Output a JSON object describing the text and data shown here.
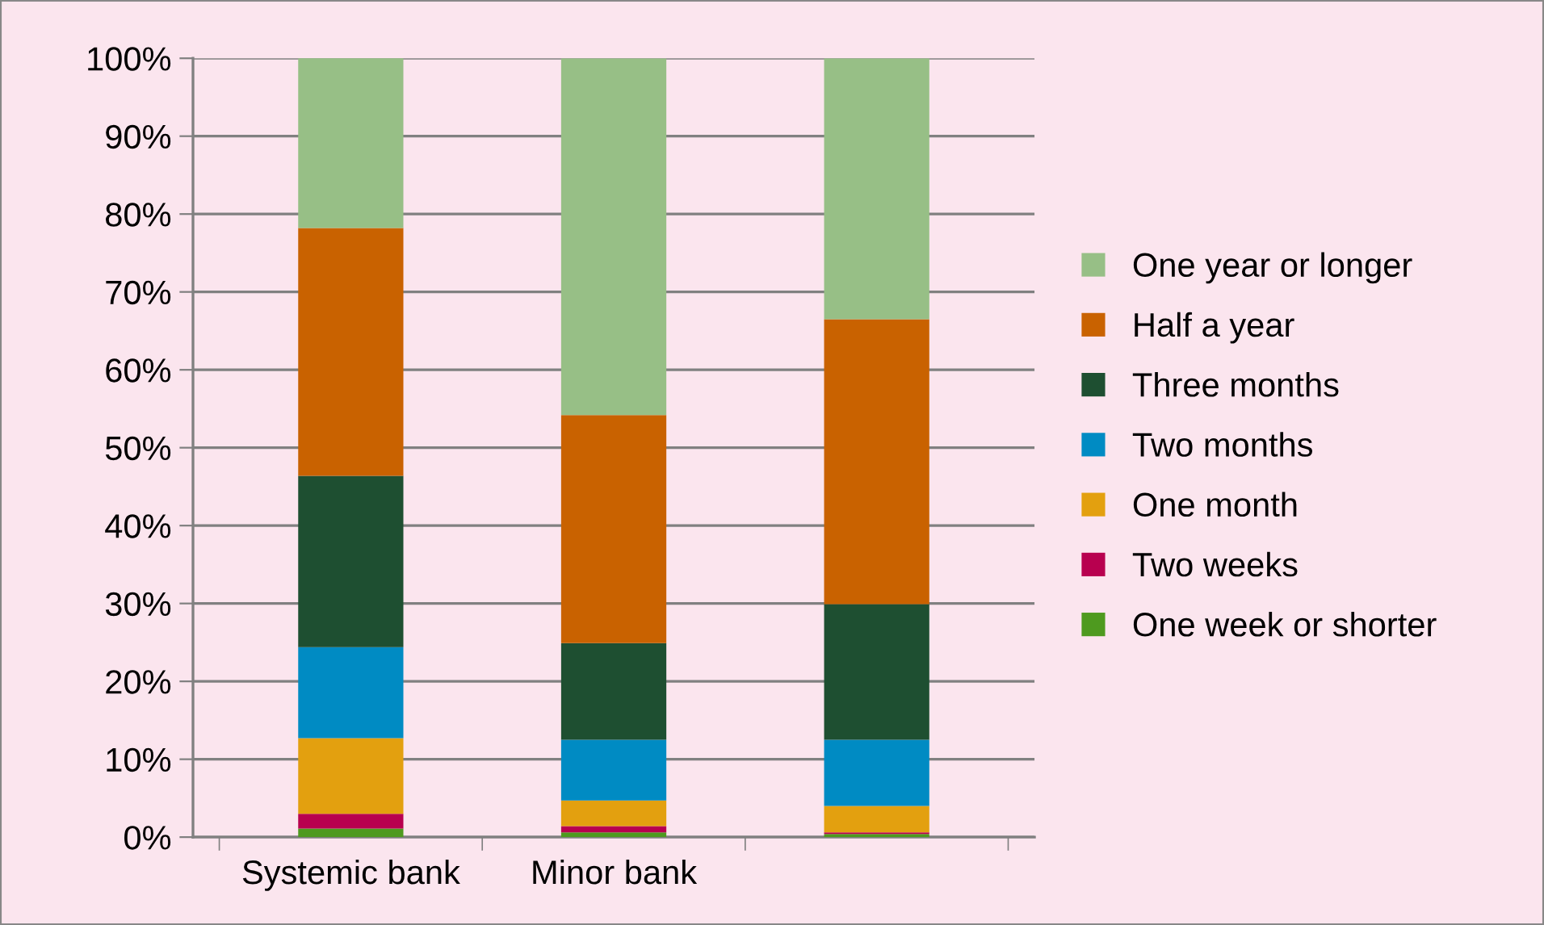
{
  "chart_data": {
    "type": "bar",
    "stacked": true,
    "categories": [
      "Systemic bank",
      "Minor bank",
      null
    ],
    "series": [
      {
        "name": "One week or shorter",
        "color": "#4e9a1f",
        "values": [
          1.1,
          0.6,
          0.4
        ]
      },
      {
        "name": "Two weeks",
        "color": "#b8004f",
        "values": [
          1.9,
          0.8,
          0.2
        ]
      },
      {
        "name": "One month",
        "color": "#e3a00f",
        "values": [
          9.7,
          3.3,
          3.4
        ]
      },
      {
        "name": "Two months",
        "color": "#008bc3",
        "values": [
          11.7,
          7.8,
          8.5
        ]
      },
      {
        "name": "Three months",
        "color": "#1e4f31",
        "values": [
          22.0,
          12.4,
          17.4
        ]
      },
      {
        "name": "Half a year",
        "color": "#c96200",
        "values": [
          31.8,
          29.3,
          36.6
        ]
      },
      {
        "name": "One year or longer",
        "color": "#97bf86",
        "values": [
          21.9,
          45.8,
          33.5
        ]
      }
    ],
    "ylim": [
      0,
      100
    ],
    "yticks": [
      {
        "value": 0,
        "label": "0%"
      },
      {
        "value": 10,
        "label": "10%"
      },
      {
        "value": 20,
        "label": "20%"
      },
      {
        "value": 30,
        "label": "30%"
      },
      {
        "value": 40,
        "label": "40%"
      },
      {
        "value": 50,
        "label": "50%"
      },
      {
        "value": 60,
        "label": "60%"
      },
      {
        "value": 70,
        "label": "70%"
      },
      {
        "value": 80,
        "label": "80%"
      },
      {
        "value": 90,
        "label": "90%"
      },
      {
        "value": 100,
        "label": "100%"
      }
    ],
    "grid": "y",
    "legend": "right"
  }
}
